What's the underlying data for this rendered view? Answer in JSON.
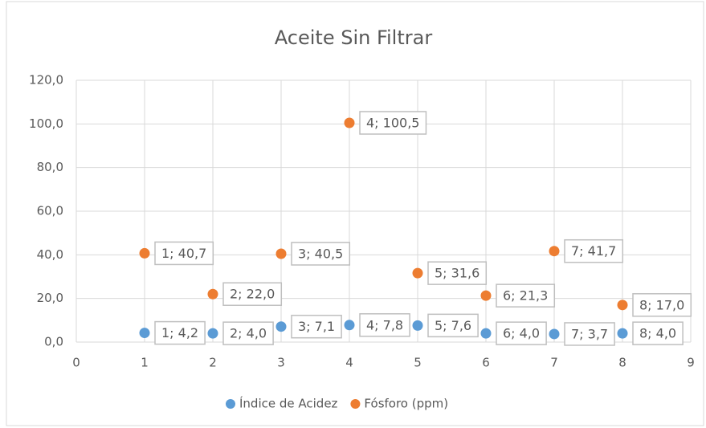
{
  "chart_data": {
    "type": "scatter",
    "title": "Aceite Sin Filtrar",
    "x": [
      1,
      2,
      3,
      4,
      5,
      6,
      7,
      8
    ],
    "series": [
      {
        "name": "Índice de Acidez",
        "color": "#5b9bd5",
        "values": [
          4.2,
          4.0,
          7.1,
          7.8,
          7.6,
          4.0,
          3.7,
          4.0
        ],
        "value_labels": [
          "1; 4,2",
          "2; 4,0",
          "3; 7,1",
          "4; 7,8",
          "5; 7,6",
          "6; 4,0",
          "7; 3,7",
          "8; 4,0"
        ]
      },
      {
        "name": "Fósforo (ppm)",
        "color": "#ed7d31",
        "values": [
          40.7,
          22.0,
          40.5,
          100.5,
          31.6,
          21.3,
          41.7,
          17.0
        ],
        "value_labels": [
          "1; 40,7",
          "2; 22,0",
          "3; 40,5",
          "4; 100,5",
          "5; 31,6",
          "6; 21,3",
          "7; 41,7",
          "8; 17,0"
        ]
      }
    ],
    "xlim": [
      0,
      9
    ],
    "xticks": [
      0,
      1,
      2,
      3,
      4,
      5,
      6,
      7,
      8,
      9
    ],
    "ylim": [
      0,
      120
    ],
    "yticks": [
      {
        "value": 0,
        "label": "0,0"
      },
      {
        "value": 20,
        "label": "20,0"
      },
      {
        "value": 40,
        "label": "40,0"
      },
      {
        "value": 60,
        "label": "60,0"
      },
      {
        "value": 80,
        "label": "80,0"
      },
      {
        "value": 100,
        "label": "100,0"
      },
      {
        "value": 120,
        "label": "120,0"
      }
    ],
    "grid": true,
    "legend": "bottom"
  }
}
